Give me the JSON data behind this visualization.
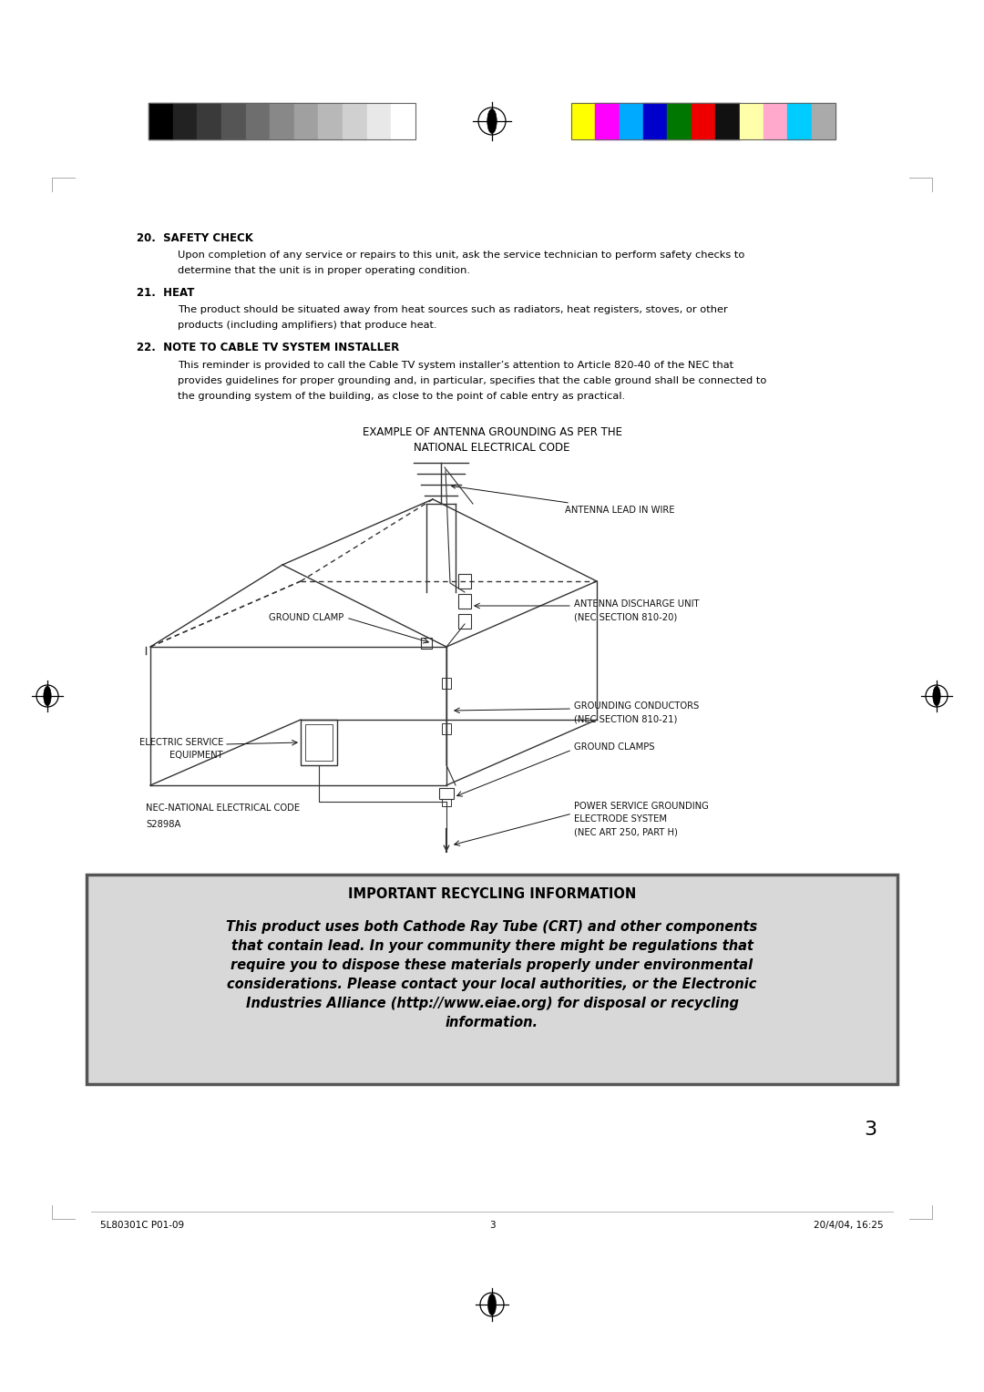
{
  "bg_color": "#ffffff",
  "page_width": 10.8,
  "page_height": 15.28,
  "color_bar_left_colors": [
    "#000000",
    "#222222",
    "#3a3a3a",
    "#555555",
    "#6e6e6e",
    "#888888",
    "#a0a0a0",
    "#b8b8b8",
    "#d0d0d0",
    "#e8e8e8",
    "#ffffff"
  ],
  "color_bar_right_colors": [
    "#ffff00",
    "#ff00ff",
    "#00aaff",
    "#0000cc",
    "#007700",
    "#ee0000",
    "#111111",
    "#ffffaa",
    "#ffaacc",
    "#00ccff",
    "#aaaaaa"
  ],
  "section20_title": "20.  SAFETY CHECK",
  "section20_body1": "Upon completion of any service or repairs to this unit, ask the service technician to perform safety checks to",
  "section20_body2": "determine that the unit is in proper operating condition.",
  "section21_title": "21.  HEAT",
  "section21_body1": "The product should be situated away from heat sources such as radiators, heat registers, stoves, or other",
  "section21_body2": "products (including amplifiers) that produce heat.",
  "section22_title": "22.  NOTE TO CABLE TV SYSTEM INSTALLER",
  "section22_body1": "This reminder is provided to call the Cable TV system installer’s attention to Article 820-40 of the NEC that",
  "section22_body2": "provides guidelines for proper grounding and, in particular, specifies that the cable ground shall be connected to",
  "section22_body3": "the grounding system of the building, as close to the point of cable entry as practical.",
  "diagram_title1": "EXAMPLE OF ANTENNA GROUNDING AS PER THE",
  "diagram_title2": "NATIONAL ELECTRICAL CODE",
  "lbl_antenna_lead": "ANTENNA LEAD IN WIRE",
  "lbl_ground_clamp": "GROUND CLAMP",
  "lbl_ant_discharge": "ANTENNA DISCHARGE UNIT",
  "lbl_ant_discharge2": "(NEC SECTION 810-20)",
  "lbl_elec_service1": "ELECTRIC SERVICE",
  "lbl_elec_service2": "EQUIPMENT",
  "lbl_grnd_conductors1": "GROUNDING CONDUCTORS",
  "lbl_grnd_conductors2": "(NEC SECTION 810-21)",
  "lbl_ground_clamps": "GROUND CLAMPS",
  "lbl_nec": "NEC-NATIONAL ELECTRICAL CODE",
  "lbl_s2898a": "S2898A",
  "lbl_power_grnd1": "POWER SERVICE GROUNDING",
  "lbl_power_grnd2": "ELECTRODE SYSTEM",
  "lbl_power_grnd3": "(NEC ART 250, PART H)",
  "recycling_title": "IMPORTANT RECYCLING INFORMATION",
  "recycling_body": "This product uses both Cathode Ray Tube (CRT) and other components\nthat contain lead. In your community there might be regulations that\nrequire you to dispose these materials properly under environmental\nconsiderations. Please contact your local authorities, or the Electronic\nIndustries Alliance (http://www.eiae.org) for disposal or recycling\ninformation.",
  "footer_left": "5L80301C P01-09",
  "footer_center": "3",
  "footer_right": "20/4/04, 16:25",
  "page_number": "3"
}
